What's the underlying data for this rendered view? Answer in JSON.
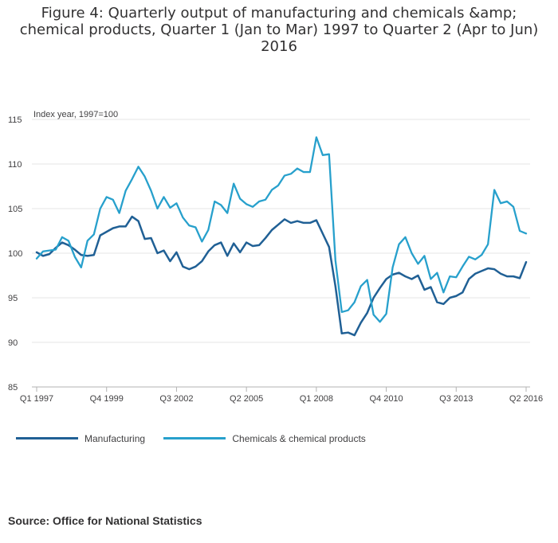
{
  "title_lines": [
    "Figure 4: Quarterly output of manufacturing and chemicals &amp;",
    "chemical products, Quarter 1 (Jan to Mar) 1997 to Quarter 2 (Apr to Jun)",
    "2016"
  ],
  "source": "Source: Office for National Statistics",
  "chart_data": {
    "type": "line",
    "title": "Figure 4: Quarterly output of manufacturing and chemicals &amp; chemical products, Quarter 1 (Jan to Mar) 1997 to Quarter 2 (Apr to Jun) 2016",
    "ylabel": "Index year, 1997=100",
    "xlabel": "",
    "ylim": [
      85,
      115
    ],
    "yticks": [
      85,
      90,
      95,
      100,
      105,
      110,
      115
    ],
    "x_start": "Q1 1997",
    "x_end": "Q2 2016",
    "n_points": 78,
    "xticks": [
      {
        "index": 0,
        "label": "Q1 1997"
      },
      {
        "index": 11,
        "label": "Q4 1999"
      },
      {
        "index": 22,
        "label": "Q3 2002"
      },
      {
        "index": 33,
        "label": "Q2 2005"
      },
      {
        "index": 44,
        "label": "Q1 2008"
      },
      {
        "index": 55,
        "label": "Q4 2010"
      },
      {
        "index": 66,
        "label": "Q3 2013"
      },
      {
        "index": 77,
        "label": "Q2 2016"
      }
    ],
    "series": [
      {
        "name": "Manufacturing",
        "color": "#206095",
        "values": [
          100.1,
          99.7,
          99.9,
          100.6,
          101.2,
          100.9,
          100.4,
          99.8,
          99.7,
          99.8,
          102.0,
          102.4,
          102.8,
          103.0,
          103.0,
          104.1,
          103.6,
          101.6,
          101.7,
          100.0,
          100.3,
          99.1,
          100.1,
          98.5,
          98.2,
          98.5,
          99.1,
          100.2,
          100.9,
          101.2,
          99.7,
          101.1,
          100.1,
          101.2,
          100.8,
          100.9,
          101.7,
          102.6,
          103.2,
          103.8,
          103.4,
          103.6,
          103.4,
          103.4,
          103.7,
          102.2,
          100.7,
          96.3,
          91.0,
          91.1,
          90.8,
          92.2,
          93.3,
          95.0,
          96.1,
          97.1,
          97.6,
          97.8,
          97.4,
          97.1,
          97.5,
          95.9,
          96.2,
          94.5,
          94.3,
          95.0,
          95.2,
          95.6,
          97.1,
          97.7,
          98.0,
          98.3,
          98.2,
          97.7,
          97.4,
          97.4,
          97.2,
          99.0
        ]
      },
      {
        "name": "Chemicals & chemical products",
        "color": "#27a0cc",
        "values": [
          99.4,
          100.2,
          100.3,
          100.4,
          101.8,
          101.4,
          99.6,
          98.4,
          101.4,
          102.1,
          105.0,
          106.3,
          106.0,
          104.5,
          107.0,
          108.3,
          109.7,
          108.6,
          107.0,
          105.0,
          106.3,
          105.1,
          105.6,
          104.0,
          103.1,
          102.9,
          101.3,
          102.6,
          105.8,
          105.4,
          104.5,
          107.8,
          106.1,
          105.5,
          105.2,
          105.8,
          106.0,
          107.1,
          107.6,
          108.7,
          108.9,
          109.5,
          109.1,
          109.1,
          113.0,
          111.0,
          111.1,
          99.2,
          93.4,
          93.6,
          94.5,
          96.3,
          97.0,
          93.1,
          92.3,
          93.2,
          98.4,
          101.0,
          101.8,
          100.0,
          98.8,
          99.7,
          97.1,
          97.8,
          95.6,
          97.4,
          97.3,
          98.5,
          99.6,
          99.3,
          99.8,
          101.0,
          107.1,
          105.6,
          105.8,
          105.2,
          102.5,
          102.2
        ]
      }
    ],
    "legend": [
      "Manufacturing",
      "Chemicals & chemical products"
    ],
    "legend_position": "bottom-left",
    "grid": true
  }
}
